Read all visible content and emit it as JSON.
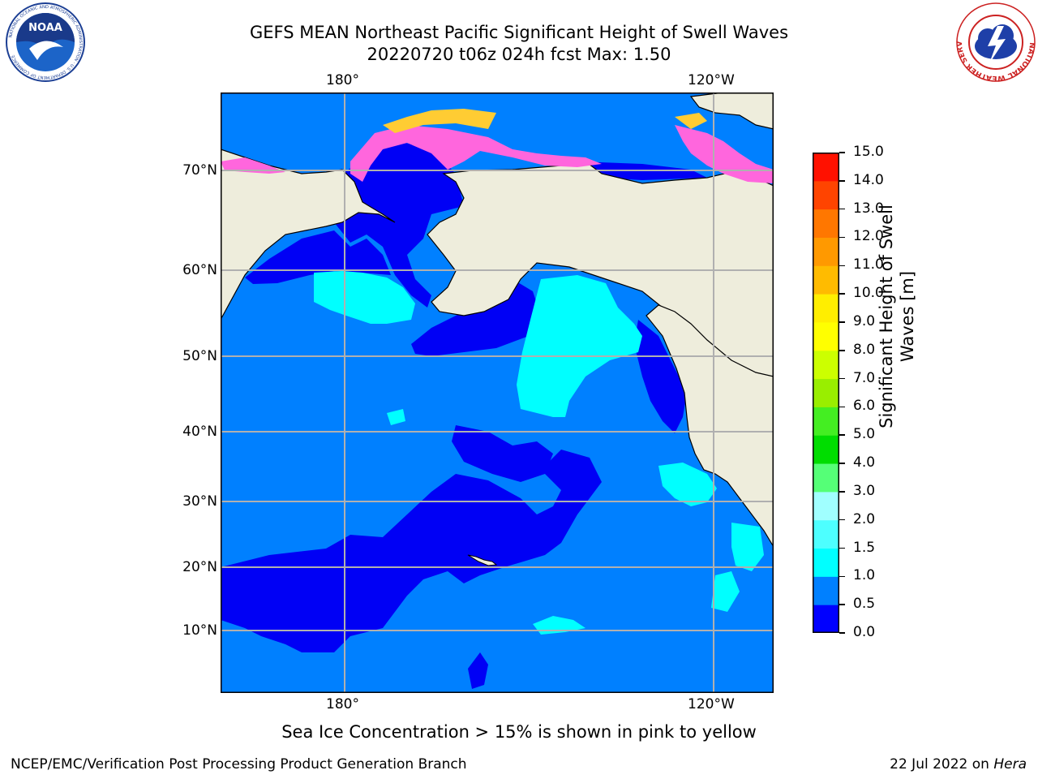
{
  "header": {
    "title_line1": "GEFS MEAN Northeast Pacific Significant Height of Swell Waves",
    "title_line2": "20220720 t06z 024h fcst   Max: 1.50"
  },
  "logos": {
    "noaa_text": "NOAA",
    "noaa_ring": "NATIONAL OCEANIC AND ATMOSPHERIC ADMINISTRATION · U.S. DEPARTMENT OF COMMERCE",
    "nws_ring": "NATIONAL WEATHER SERVICE"
  },
  "map": {
    "lon_labels_top": [
      "180°",
      "120°W"
    ],
    "lon_labels_bottom": [
      "180°",
      "120°W"
    ],
    "lat_labels": [
      "70°N",
      "60°N",
      "50°N",
      "40°N",
      "30°N",
      "20°N",
      "10°N"
    ],
    "colors": {
      "land": "#eeeddc",
      "ocean_0_05": "#0000f5",
      "ocean_05_10": "#0080ff",
      "ocean_10_15": "#00ffff",
      "ice_pink": "#ff66dd",
      "ice_yellow": "#ffcc33",
      "grid": "#b0b0b0"
    }
  },
  "colorbar": {
    "label_line1": "Significant Height of Swell",
    "label_line2": "Waves [m]",
    "ticks": [
      "0.0",
      "0.5",
      "1.0",
      "1.5",
      "2.0",
      "3.0",
      "4.0",
      "5.0",
      "6.0",
      "7.0",
      "8.0",
      "9.0",
      "10.0",
      "11.0",
      "12.0",
      "13.0",
      "14.0",
      "15.0"
    ],
    "colors": [
      "#0000ff",
      "#0080ff",
      "#00ffff",
      "#4dffff",
      "#a0ffff",
      "#55ff77",
      "#00dd00",
      "#44ee22",
      "#99ee00",
      "#ccff00",
      "#ffff00",
      "#ffee00",
      "#ffbb00",
      "#ff9900",
      "#ff7700",
      "#ff4400",
      "#ff1100"
    ]
  },
  "notes": {
    "sea_ice": "Sea Ice Concentration > 15% is shown in pink to yellow"
  },
  "footer": {
    "left": "NCEP/EMC/Verification Post Processing Product Generation Branch",
    "right_prefix": "22 Jul 2022 on ",
    "right_host": "Hera"
  }
}
